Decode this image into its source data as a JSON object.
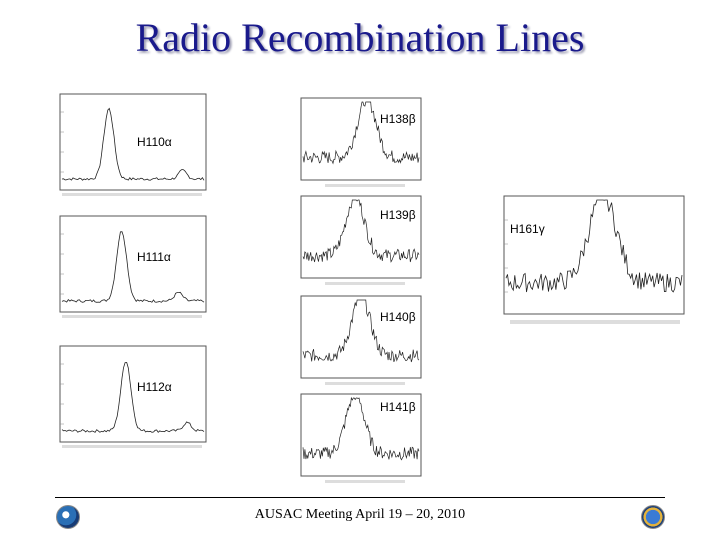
{
  "title": "Radio Recombination Lines",
  "footer": "AUSAC Meeting April 19 – 20, 2010",
  "lines": {
    "h110a": "H110α",
    "h111a": "H111α",
    "h112a": "H112α",
    "h138b": "H138β",
    "h139b": "H139β",
    "h140b": "H140β",
    "h141b": "H141β",
    "h161g": "H161γ"
  },
  "icons": [
    "noaa-logo-icon",
    "nsf-logo-icon"
  ]
}
